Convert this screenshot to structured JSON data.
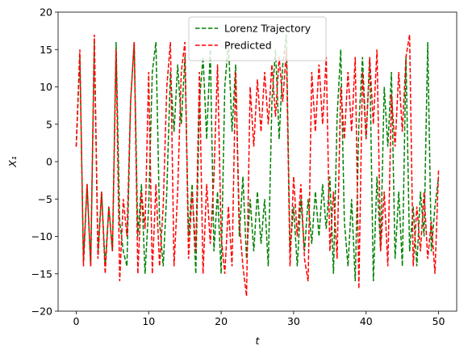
{
  "chart_data": {
    "type": "line",
    "xlabel": "t",
    "ylabel": "X₁",
    "x": [
      0,
      0.5,
      1,
      1.5,
      2,
      2.5,
      3,
      3.5,
      4,
      4.5,
      5,
      5.5,
      6,
      6.5,
      7,
      7.5,
      8,
      8.5,
      9,
      9.5,
      10,
      10.5,
      11,
      11.5,
      12,
      12.5,
      13,
      13.5,
      14,
      14.5,
      15,
      15.5,
      16,
      16.5,
      17,
      17.5,
      18,
      18.5,
      19,
      19.5,
      20,
      20.5,
      21,
      21.5,
      22,
      22.5,
      23,
      23.5,
      24,
      24.5,
      25,
      25.5,
      26,
      26.5,
      27,
      27.5,
      28,
      28.5,
      29,
      29.5,
      30,
      30.5,
      31,
      31.5,
      32,
      32.5,
      33,
      33.5,
      34,
      34.5,
      35,
      35.5,
      36,
      36.5,
      37,
      37.5,
      38,
      38.5,
      39,
      39.5,
      40,
      40.5,
      41,
      41.5,
      42,
      42.5,
      43,
      43.5,
      44,
      44.5,
      45,
      45.5,
      46,
      46.5,
      47,
      47.5,
      48,
      48.5,
      49,
      49.5,
      50
    ],
    "series": [
      {
        "name": "Lorenz Trajectory",
        "color": "#008000",
        "linestyle": "dashed",
        "values": [
          2,
          14,
          -13,
          -3,
          -14,
          16,
          -12,
          -4,
          -14,
          -6,
          -12,
          16,
          -8,
          -12,
          -14,
          8,
          16,
          -10,
          -3,
          -15,
          -6,
          12,
          16,
          -8,
          -14,
          -4,
          12,
          4,
          13,
          5,
          14,
          -10,
          -3,
          -15,
          8,
          14,
          3,
          15,
          -12,
          -4,
          -15,
          10,
          16,
          4,
          13,
          -10,
          -2,
          -13,
          -5,
          -12,
          -4,
          -11,
          -5,
          -14,
          8,
          15,
          3,
          13,
          17,
          -12,
          -6,
          -14,
          -5,
          -12,
          -5,
          -11,
          -4,
          -10,
          -3,
          -9,
          -2,
          -15,
          6,
          15,
          -8,
          -14,
          -5,
          -16,
          5,
          14,
          3,
          14,
          -16,
          -2,
          -12,
          10,
          2,
          12,
          -13,
          -4,
          -14,
          14,
          -12,
          -6,
          -14,
          -4,
          -10,
          16,
          -12,
          -6,
          -2
        ]
      },
      {
        "name": "Predicted",
        "color": "#ff0000",
        "linestyle": "dashed",
        "values": [
          2,
          15,
          -14,
          -3,
          -14,
          17,
          -13,
          -4,
          -15,
          -6,
          -12,
          15,
          -16,
          -5,
          -10,
          8,
          16,
          -15,
          -4,
          -9,
          12,
          -15,
          -3,
          -14,
          -6,
          10,
          16,
          -14,
          -4,
          12,
          16,
          -13,
          -4,
          -12,
          12,
          -15,
          -3,
          -11,
          -2,
          13,
          -10,
          -15,
          -6,
          -14,
          12,
          -8,
          -14,
          -18,
          10,
          2,
          11,
          4,
          12,
          5,
          13,
          6,
          14,
          8,
          15,
          -14,
          -2,
          -10,
          -3,
          -13,
          -16,
          12,
          4,
          13,
          5,
          14,
          -12,
          -4,
          -13,
          10,
          3,
          12,
          4,
          14,
          -17,
          12,
          3,
          14,
          5,
          15,
          -12,
          -4,
          -14,
          9,
          2,
          12,
          4,
          14,
          17,
          -14,
          -6,
          -12,
          -4,
          -13,
          -8,
          -15,
          -1
        ]
      }
    ],
    "xlim": [
      -2.5,
      52.5
    ],
    "ylim": [
      -20,
      20
    ],
    "xticks": [
      0,
      10,
      20,
      30,
      40,
      50
    ],
    "yticks": [
      {
        "value": -20,
        "label": "−20"
      },
      {
        "value": -15,
        "label": "−15"
      },
      {
        "value": -10,
        "label": "−10"
      },
      {
        "value": -5,
        "label": "−5"
      },
      0,
      5,
      10,
      15,
      20
    ],
    "legend": "upper center"
  }
}
